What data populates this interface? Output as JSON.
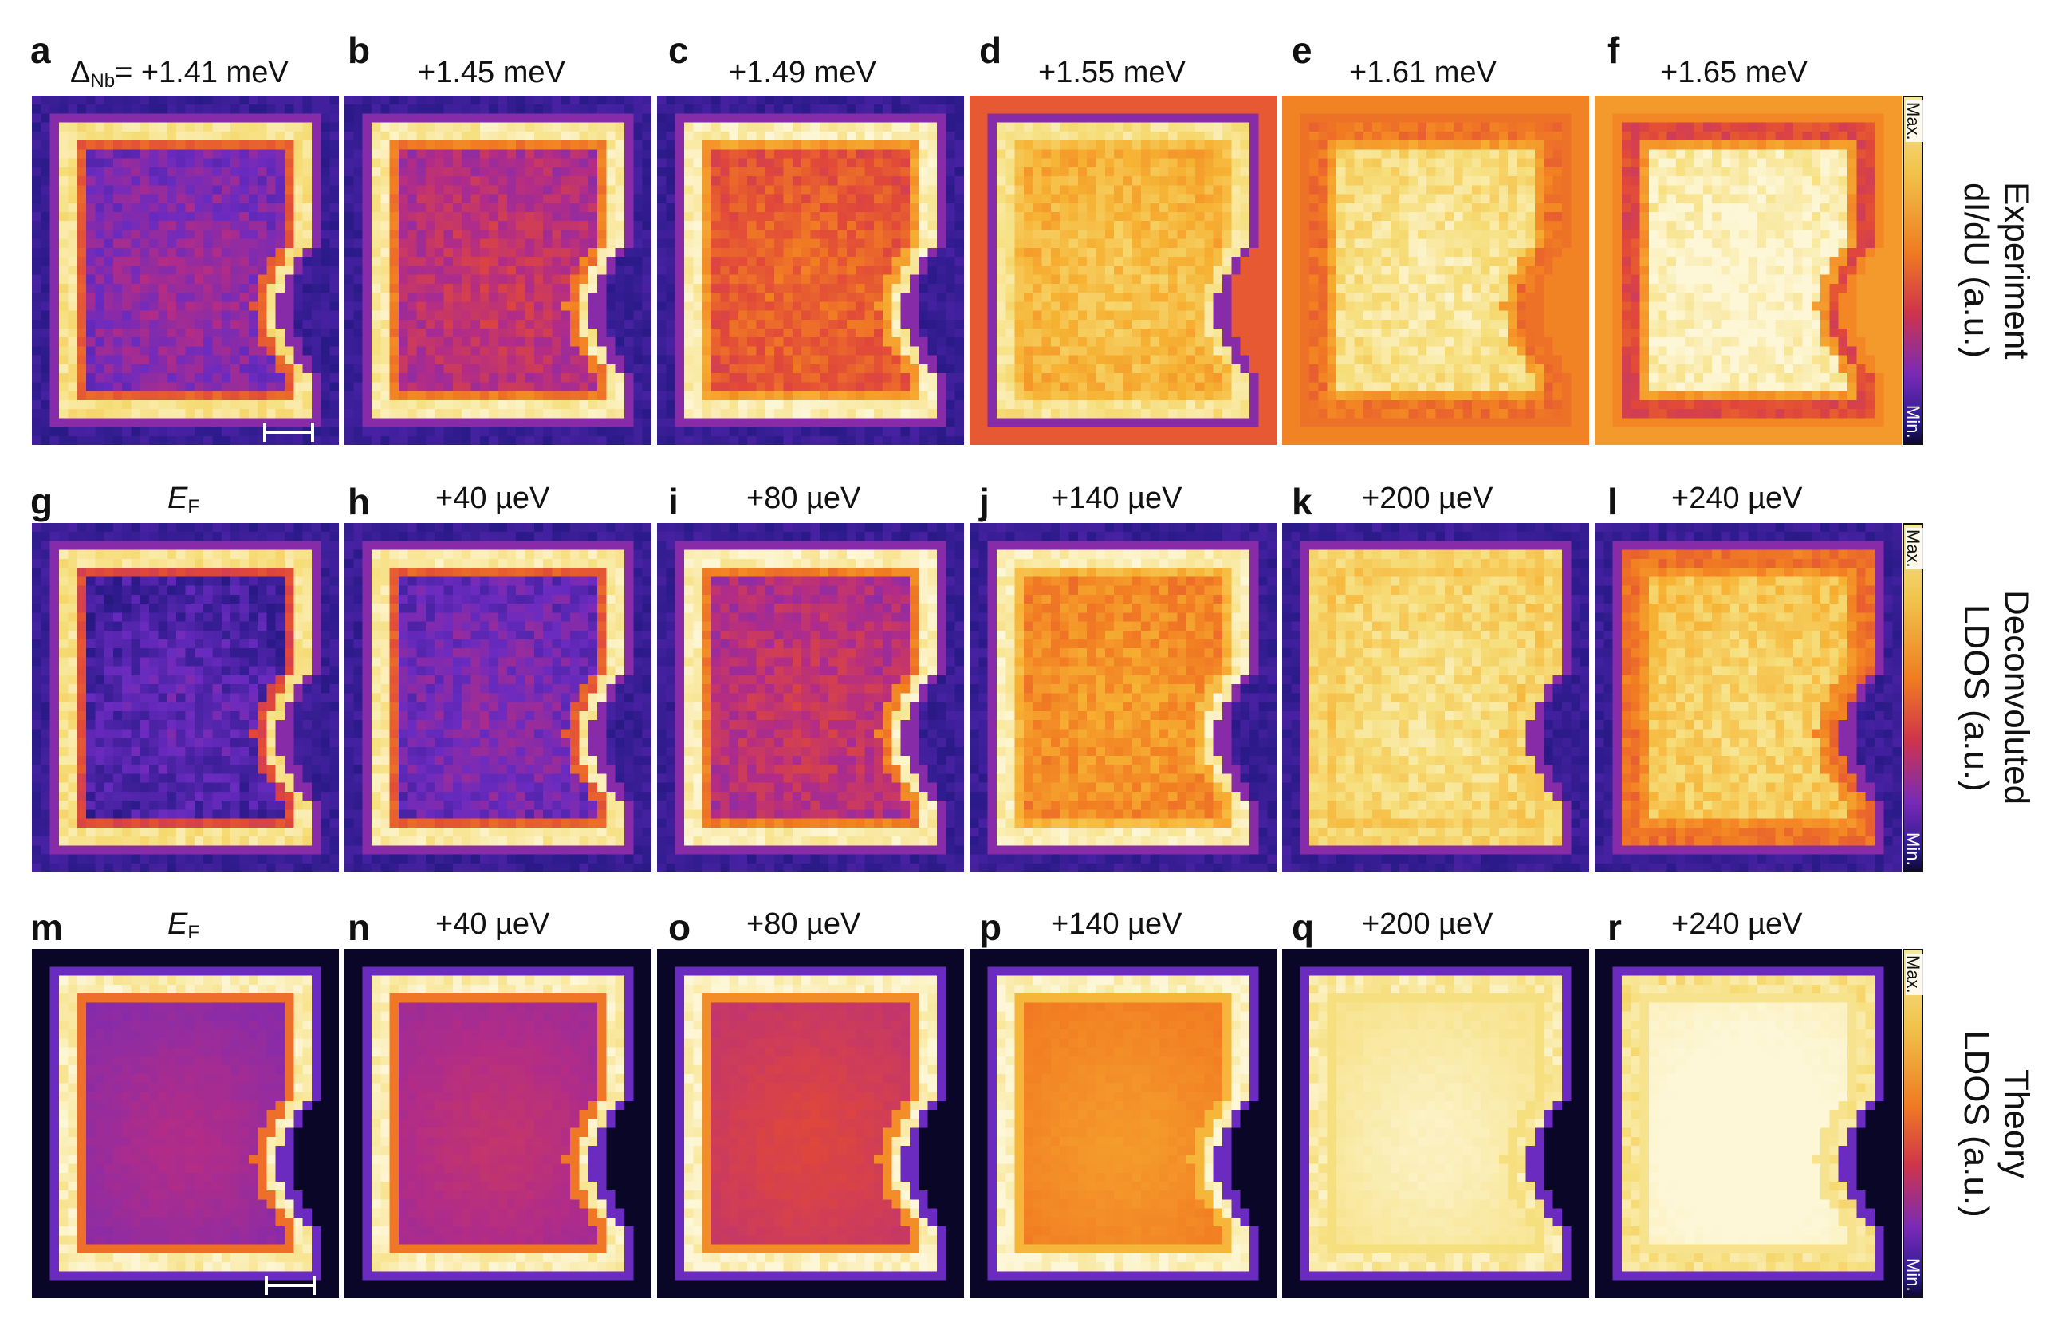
{
  "rows": [
    {
      "title_lines": [
        "Experiment",
        "dI/dU (a.u.)"
      ],
      "colorbar": {
        "max_label": "Max.",
        "min_label": "Min."
      },
      "panels": [
        {
          "letter": "a",
          "label": "= +1.41 meV",
          "label_prefix": "Δ",
          "label_sub": "Nb",
          "brightness": 0.25,
          "edge": 0.85
        },
        {
          "letter": "b",
          "label": "+1.45 meV",
          "brightness": 0.35,
          "edge": 0.88
        },
        {
          "letter": "c",
          "label": "+1.49 meV",
          "brightness": 0.5,
          "edge": 0.9
        },
        {
          "letter": "d",
          "label": "+1.55 meV",
          "brightness": 0.72,
          "edge": 0.85
        },
        {
          "letter": "e",
          "label": "+1.61 meV",
          "brightness": 0.85,
          "edge": 0.55
        },
        {
          "letter": "f",
          "label": "+1.65 meV",
          "brightness": 0.92,
          "edge": 0.45
        }
      ]
    },
    {
      "title_lines": [
        "Deconvoluted",
        "LDOS (a.u.)"
      ],
      "colorbar": {
        "max_label": "Max.",
        "min_label": "Min."
      },
      "panels": [
        {
          "letter": "g",
          "label": "E",
          "label_sub": "F",
          "brightness": 0.15,
          "edge": 0.85
        },
        {
          "letter": "h",
          "label": "+40 µeV",
          "brightness": 0.22,
          "edge": 0.88
        },
        {
          "letter": "i",
          "label": "+80 µeV",
          "brightness": 0.35,
          "edge": 0.9
        },
        {
          "letter": "j",
          "label": "+140 µeV",
          "brightness": 0.62,
          "edge": 0.9
        },
        {
          "letter": "k",
          "label": "+200 µeV",
          "brightness": 0.82,
          "edge": 0.8
        },
        {
          "letter": "l",
          "label": "+240 µeV",
          "brightness": 0.78,
          "edge": 0.55
        }
      ]
    },
    {
      "title_lines": [
        "Theory",
        "LDOS (a.u.)"
      ],
      "colorbar": {
        "max_label": "Max.",
        "min_label": "Min."
      },
      "panels": [
        {
          "letter": "m",
          "label": "E",
          "label_sub": "F",
          "brightness": 0.28,
          "edge": 0.9
        },
        {
          "letter": "n",
          "label": "+40 µeV",
          "brightness": 0.32,
          "edge": 0.9
        },
        {
          "letter": "o",
          "label": "+80 µeV",
          "brightness": 0.4,
          "edge": 0.92
        },
        {
          "letter": "p",
          "label": "+140 µeV",
          "brightness": 0.6,
          "edge": 0.92
        },
        {
          "letter": "q",
          "label": "+200 µeV",
          "brightness": 0.88,
          "edge": 0.88
        },
        {
          "letter": "r",
          "label": "+240 µeV",
          "brightness": 0.95,
          "edge": 0.85
        }
      ]
    }
  ],
  "colormap": [
    "#0a0628",
    "#2b1a8a",
    "#6b2bc0",
    "#b32c86",
    "#e0473a",
    "#f27e22",
    "#f6b233",
    "#f6de7a",
    "#fdf7d8"
  ]
}
